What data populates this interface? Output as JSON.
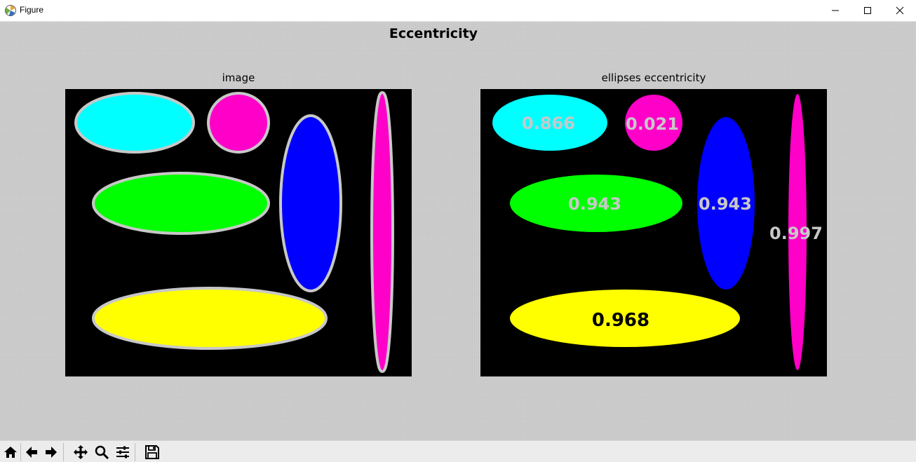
{
  "window": {
    "title": "Figure",
    "app_icon": "matplotlib-icon",
    "controls": [
      "minimize-icon",
      "maximize-icon",
      "close-icon"
    ]
  },
  "figure": {
    "suptitle": "Eccentricity",
    "left_axes": {
      "title": "image",
      "background": "#000000",
      "outline_color": "#c8c8c8",
      "ellipses": [
        {
          "name": "cyan-ellipse",
          "color": "#00ffff"
        },
        {
          "name": "magenta-circle",
          "color": "#ff00c8"
        },
        {
          "name": "blue-vertical-ellipse",
          "color": "#0000ff"
        },
        {
          "name": "magenta-thin-ellipse",
          "color": "#ff00c8"
        },
        {
          "name": "green-ellipse",
          "color": "#00ff00"
        },
        {
          "name": "yellow-ellipse",
          "color": "#ffff00"
        }
      ]
    },
    "right_axes": {
      "title": "ellipses eccentricity",
      "background": "#000000",
      "ellipses": [
        {
          "name": "cyan-ellipse",
          "color": "#00ffff",
          "label": "0.866",
          "label_color": "#c8c8c8"
        },
        {
          "name": "magenta-circle",
          "color": "#ff00c8",
          "label": "0.021",
          "label_color": "#c8c8c8"
        },
        {
          "name": "green-ellipse",
          "color": "#00ff00",
          "label": "0.943",
          "label_color": "#c8c8c8"
        },
        {
          "name": "blue-vertical-ellipse",
          "color": "#0000ff",
          "label": "0.943",
          "label_color": "#c8c8c8"
        },
        {
          "name": "magenta-thin-ellipse",
          "color": "#ff00c8",
          "label": "0.997",
          "label_color": "#c8c8c8"
        },
        {
          "name": "yellow-ellipse",
          "color": "#ffff00",
          "label": "0.968",
          "label_color": "#000000"
        }
      ]
    }
  },
  "toolbar": {
    "buttons": [
      "home-icon",
      "back-arrow-icon",
      "forward-arrow-icon",
      "pan-icon",
      "zoom-icon",
      "subplots-config-icon",
      "save-icon"
    ]
  }
}
